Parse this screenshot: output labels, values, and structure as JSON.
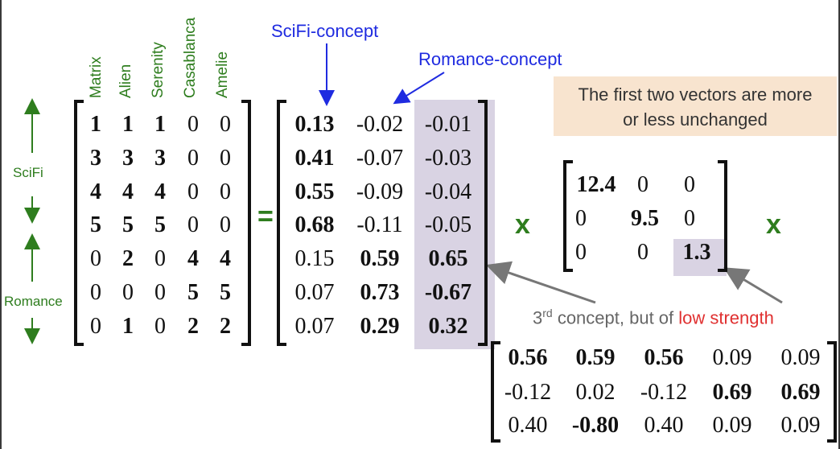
{
  "movies": [
    "Matrix",
    "Alien",
    "Serenity",
    "Casablanca",
    "Amelie"
  ],
  "row_groups": {
    "scifi": "SciFi",
    "romance": "Romance"
  },
  "concept_labels": {
    "scifi": "SciFi-concept",
    "romance": "Romance-concept"
  },
  "note": {
    "line1": "The first two vectors are more",
    "line2": "or less unchanged"
  },
  "annotation": {
    "prefix": "3",
    "superscript": "rd",
    "mid": " concept, but of ",
    "highlight": "low strength"
  },
  "operators": {
    "equals": "=",
    "times1": "x",
    "times2": "x"
  },
  "colors": {
    "green": "#2e7d1e",
    "blue": "#1f2be0",
    "red": "#e03030",
    "shade": "#d9d3e3",
    "note_bg": "#f8e4cf"
  },
  "matrix_A": [
    [
      "1",
      "1",
      "1",
      "0",
      "0"
    ],
    [
      "3",
      "3",
      "3",
      "0",
      "0"
    ],
    [
      "4",
      "4",
      "4",
      "0",
      "0"
    ],
    [
      "5",
      "5",
      "5",
      "0",
      "0"
    ],
    [
      "0",
      "2",
      "0",
      "4",
      "4"
    ],
    [
      "0",
      "0",
      "0",
      "5",
      "5"
    ],
    [
      "0",
      "1",
      "0",
      "2",
      "2"
    ]
  ],
  "matrix_U": [
    [
      "0.13",
      "-0.02",
      "-0.01"
    ],
    [
      "0.41",
      "-0.07",
      "-0.03"
    ],
    [
      "0.55",
      "-0.09",
      "-0.04"
    ],
    [
      "0.68",
      "-0.11",
      "-0.05"
    ],
    [
      "0.15",
      "0.59",
      "0.65"
    ],
    [
      "0.07",
      "0.73",
      "-0.67"
    ],
    [
      "0.07",
      "0.29",
      "0.32"
    ]
  ],
  "matrix_S": [
    [
      "12.4",
      "0",
      "0"
    ],
    [
      "0",
      "9.5",
      "0"
    ],
    [
      "0",
      "0",
      "1.3"
    ]
  ],
  "matrix_V": [
    [
      "0.56",
      "0.59",
      "0.56",
      "0.09",
      "0.09"
    ],
    [
      "-0.12",
      "0.02",
      "-0.12",
      "0.69",
      "0.69"
    ],
    [
      "0.40",
      "-0.80",
      "0.40",
      "0.09",
      "0.09"
    ]
  ]
}
